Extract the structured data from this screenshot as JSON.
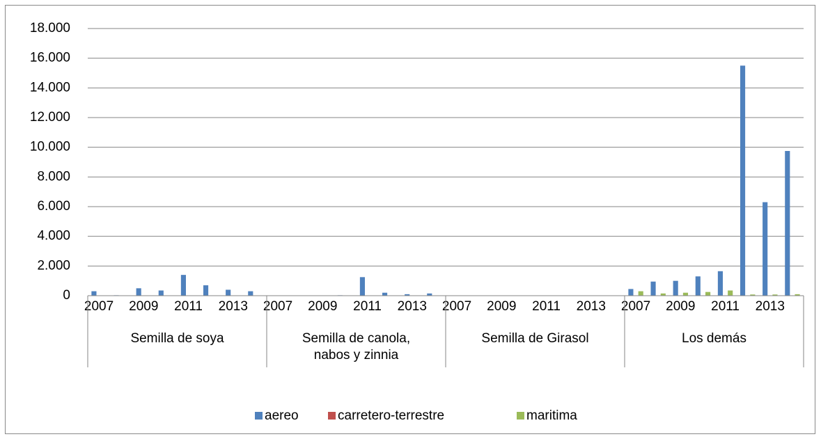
{
  "chart_data": {
    "type": "bar",
    "groups": [
      "Semilla de soya",
      "Semilla de canola, nabos y zinnia",
      "Semilla de Girasol",
      "Los demás"
    ],
    "categories": [
      "2007",
      null,
      "2009",
      null,
      "2011",
      null,
      "2013",
      null,
      "2007",
      null,
      "2009",
      null,
      "2011",
      null,
      "2013",
      null,
      "2007",
      null,
      "2009",
      null,
      "2011",
      null,
      "2013",
      null,
      "2007",
      null,
      "2009",
      null,
      "2011",
      null,
      "2013",
      null
    ],
    "series": [
      {
        "name": "aereo",
        "color": "#4f81bd",
        "values": [
          300,
          30,
          500,
          350,
          1400,
          700,
          400,
          300,
          0,
          10,
          20,
          30,
          1250,
          200,
          100,
          150,
          0,
          0,
          0,
          0,
          0,
          10,
          20,
          20,
          450,
          950,
          1000,
          1300,
          1650,
          15500,
          6300,
          9750
        ]
      },
      {
        "name": "carretero-terrestre",
        "color": "#c0504d",
        "values": [
          0,
          0,
          0,
          0,
          0,
          0,
          0,
          0,
          0,
          0,
          0,
          0,
          0,
          0,
          0,
          0,
          0,
          0,
          0,
          0,
          0,
          0,
          0,
          0,
          0,
          0,
          0,
          0,
          0,
          0,
          0,
          0
        ]
      },
      {
        "name": "maritima",
        "color": "#9bbb59",
        "values": [
          0,
          20,
          0,
          0,
          0,
          0,
          0,
          0,
          0,
          0,
          0,
          0,
          0,
          0,
          0,
          0,
          0,
          0,
          0,
          0,
          0,
          0,
          0,
          0,
          300,
          150,
          200,
          250,
          350,
          80,
          80,
          100
        ]
      }
    ],
    "ylim": [
      0,
      18000
    ],
    "yticks": [
      0,
      {
        "value": 2000,
        "label": "2.000"
      },
      {
        "value": 4000,
        "label": "4.000"
      },
      {
        "value": 6000,
        "label": "6.000"
      },
      {
        "value": 8000,
        "label": "8.000"
      },
      {
        "value": 10000,
        "label": "10.000"
      },
      {
        "value": 12000,
        "label": "12.000"
      },
      {
        "value": 14000,
        "label": "14.000"
      },
      {
        "value": 16000,
        "label": "16.000"
      },
      {
        "value": 18000,
        "label": "18.000"
      }
    ],
    "grid": true,
    "legend": "bottom"
  }
}
